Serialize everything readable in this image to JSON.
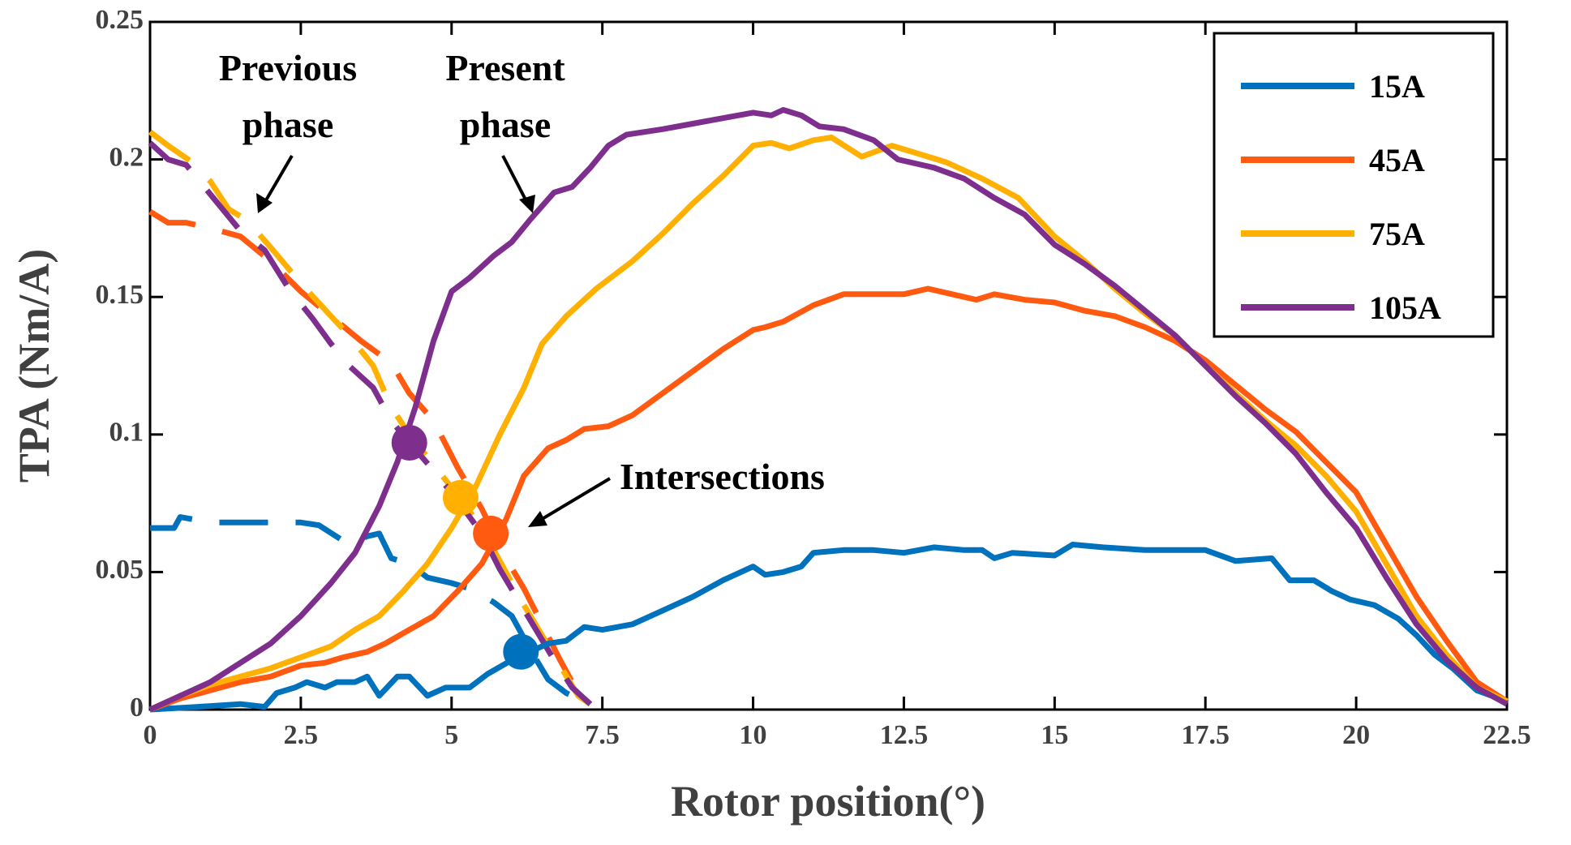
{
  "chart_data": {
    "type": "line",
    "title": "",
    "xlabel": "Rotor position(°)",
    "ylabel": "TPA (Nm/A)",
    "xlim": [
      0,
      22.5
    ],
    "ylim": [
      0,
      0.25
    ],
    "xticks": [
      0,
      2.5,
      5,
      7.5,
      10,
      12.5,
      15,
      17.5,
      20,
      22.5
    ],
    "xtick_labels": [
      "0",
      "2.5",
      "5",
      "7.5",
      "10",
      "12.5",
      "15",
      "17.5",
      "20",
      "22.5"
    ],
    "yticks": [
      0,
      0.05,
      0.1,
      0.15,
      0.2,
      0.25
    ],
    "ytick_labels": [
      "0",
      "0.05",
      "0.1",
      "0.15",
      "0.2",
      "0.25"
    ],
    "legend_position": "top-right",
    "series": [
      {
        "name": "15A",
        "color": "#0072BD",
        "present": [
          [
            0,
            0
          ],
          [
            0.8,
            0.001
          ],
          [
            1.5,
            0.002
          ],
          [
            1.9,
            0.001
          ],
          [
            2.1,
            0.006
          ],
          [
            2.4,
            0.008
          ],
          [
            2.6,
            0.01
          ],
          [
            2.9,
            0.008
          ],
          [
            3.1,
            0.01
          ],
          [
            3.4,
            0.01
          ],
          [
            3.6,
            0.012
          ],
          [
            3.8,
            0.005
          ],
          [
            4.1,
            0.012
          ],
          [
            4.3,
            0.012
          ],
          [
            4.6,
            0.005
          ],
          [
            4.9,
            0.008
          ],
          [
            5.3,
            0.008
          ],
          [
            5.6,
            0.013
          ],
          [
            6.0,
            0.018
          ],
          [
            6.3,
            0.021
          ],
          [
            6.6,
            0.024
          ],
          [
            6.9,
            0.025
          ],
          [
            7.2,
            0.03
          ],
          [
            7.5,
            0.029
          ],
          [
            8.0,
            0.031
          ],
          [
            8.5,
            0.036
          ],
          [
            9.0,
            0.041
          ],
          [
            9.5,
            0.047
          ],
          [
            10.0,
            0.052
          ],
          [
            10.2,
            0.049
          ],
          [
            10.5,
            0.05
          ],
          [
            10.8,
            0.052
          ],
          [
            11.0,
            0.057
          ],
          [
            11.5,
            0.058
          ],
          [
            12.0,
            0.058
          ],
          [
            12.5,
            0.057
          ],
          [
            13.0,
            0.059
          ],
          [
            13.5,
            0.058
          ],
          [
            13.8,
            0.058
          ],
          [
            14.0,
            0.055
          ],
          [
            14.3,
            0.057
          ],
          [
            15.0,
            0.056
          ],
          [
            15.3,
            0.06
          ],
          [
            15.8,
            0.059
          ],
          [
            16.5,
            0.058
          ],
          [
            17.5,
            0.058
          ],
          [
            18.0,
            0.054
          ],
          [
            18.6,
            0.055
          ],
          [
            18.9,
            0.047
          ],
          [
            19.3,
            0.047
          ],
          [
            19.6,
            0.043
          ],
          [
            19.9,
            0.04
          ],
          [
            20.3,
            0.038
          ],
          [
            20.7,
            0.033
          ],
          [
            21.0,
            0.027
          ],
          [
            21.3,
            0.02
          ],
          [
            21.6,
            0.015
          ],
          [
            22.0,
            0.007
          ],
          [
            22.5,
            0.003
          ]
        ],
        "previous": [
          [
            0,
            0.066
          ],
          [
            0.4,
            0.066
          ],
          [
            0.5,
            0.07
          ],
          [
            1.0,
            0.068
          ],
          [
            1.6,
            0.068
          ],
          [
            2.0,
            0.068
          ],
          [
            2.5,
            0.068
          ],
          [
            2.8,
            0.067
          ],
          [
            3.3,
            0.06
          ],
          [
            3.6,
            0.063
          ],
          [
            3.8,
            0.064
          ],
          [
            4.0,
            0.055
          ],
          [
            4.3,
            0.053
          ],
          [
            4.6,
            0.048
          ],
          [
            5.0,
            0.046
          ],
          [
            5.3,
            0.044
          ],
          [
            5.7,
            0.039
          ],
          [
            6.0,
            0.034
          ],
          [
            6.3,
            0.022
          ],
          [
            6.6,
            0.011
          ],
          [
            6.9,
            0.006
          ],
          [
            7.3,
            0.002
          ]
        ]
      },
      {
        "name": "45A",
        "color": "#FF5A10",
        "present": [
          [
            0,
            0
          ],
          [
            0.5,
            0.004
          ],
          [
            1.0,
            0.007
          ],
          [
            1.5,
            0.01
          ],
          [
            2.0,
            0.012
          ],
          [
            2.5,
            0.016
          ],
          [
            2.9,
            0.017
          ],
          [
            3.2,
            0.019
          ],
          [
            3.6,
            0.021
          ],
          [
            3.9,
            0.024
          ],
          [
            4.3,
            0.029
          ],
          [
            4.7,
            0.034
          ],
          [
            5.1,
            0.043
          ],
          [
            5.5,
            0.053
          ],
          [
            5.9,
            0.069
          ],
          [
            6.2,
            0.085
          ],
          [
            6.6,
            0.095
          ],
          [
            6.9,
            0.098
          ],
          [
            7.2,
            0.102
          ],
          [
            7.6,
            0.103
          ],
          [
            8.0,
            0.107
          ],
          [
            8.5,
            0.115
          ],
          [
            9.0,
            0.123
          ],
          [
            9.5,
            0.131
          ],
          [
            10.0,
            0.138
          ],
          [
            10.2,
            0.139
          ],
          [
            10.5,
            0.141
          ],
          [
            11.0,
            0.147
          ],
          [
            11.5,
            0.151
          ],
          [
            12.0,
            0.151
          ],
          [
            12.5,
            0.151
          ],
          [
            12.9,
            0.153
          ],
          [
            13.3,
            0.151
          ],
          [
            13.7,
            0.149
          ],
          [
            14.0,
            0.151
          ],
          [
            14.5,
            0.149
          ],
          [
            15.0,
            0.148
          ],
          [
            15.5,
            0.145
          ],
          [
            16.0,
            0.143
          ],
          [
            16.5,
            0.139
          ],
          [
            17.0,
            0.134
          ],
          [
            17.5,
            0.127
          ],
          [
            18.0,
            0.118
          ],
          [
            18.5,
            0.109
          ],
          [
            19.0,
            0.101
          ],
          [
            19.5,
            0.09
          ],
          [
            20.0,
            0.079
          ],
          [
            20.5,
            0.06
          ],
          [
            21.0,
            0.041
          ],
          [
            21.5,
            0.025
          ],
          [
            22.0,
            0.01
          ],
          [
            22.5,
            0.003
          ]
        ],
        "previous": [
          [
            0,
            0.181
          ],
          [
            0.3,
            0.177
          ],
          [
            0.6,
            0.177
          ],
          [
            1.0,
            0.175
          ],
          [
            1.5,
            0.172
          ],
          [
            2.0,
            0.163
          ],
          [
            2.5,
            0.152
          ],
          [
            3.0,
            0.143
          ],
          [
            3.5,
            0.134
          ],
          [
            4.0,
            0.126
          ],
          [
            4.3,
            0.115
          ],
          [
            4.7,
            0.105
          ],
          [
            5.1,
            0.088
          ],
          [
            5.5,
            0.073
          ],
          [
            5.9,
            0.055
          ],
          [
            6.2,
            0.044
          ],
          [
            6.5,
            0.031
          ],
          [
            6.8,
            0.018
          ],
          [
            7.1,
            0.006
          ],
          [
            7.3,
            0.002
          ]
        ]
      },
      {
        "name": "75A",
        "color": "#FFB000",
        "present": [
          [
            0,
            0
          ],
          [
            0.5,
            0.005
          ],
          [
            1.0,
            0.009
          ],
          [
            1.5,
            0.012
          ],
          [
            2.0,
            0.015
          ],
          [
            2.5,
            0.019
          ],
          [
            3.0,
            0.023
          ],
          [
            3.4,
            0.029
          ],
          [
            3.8,
            0.034
          ],
          [
            4.2,
            0.043
          ],
          [
            4.6,
            0.053
          ],
          [
            5.0,
            0.066
          ],
          [
            5.4,
            0.081
          ],
          [
            5.8,
            0.1
          ],
          [
            6.2,
            0.117
          ],
          [
            6.5,
            0.133
          ],
          [
            6.9,
            0.143
          ],
          [
            7.4,
            0.153
          ],
          [
            8.0,
            0.163
          ],
          [
            8.5,
            0.173
          ],
          [
            9.0,
            0.184
          ],
          [
            9.5,
            0.194
          ],
          [
            10.0,
            0.205
          ],
          [
            10.3,
            0.206
          ],
          [
            10.6,
            0.204
          ],
          [
            11.0,
            0.207
          ],
          [
            11.3,
            0.208
          ],
          [
            11.8,
            0.201
          ],
          [
            12.3,
            0.205
          ],
          [
            12.6,
            0.203
          ],
          [
            13.2,
            0.199
          ],
          [
            13.8,
            0.193
          ],
          [
            14.4,
            0.186
          ],
          [
            15.0,
            0.172
          ],
          [
            15.5,
            0.163
          ],
          [
            16.0,
            0.153
          ],
          [
            16.5,
            0.144
          ],
          [
            17.0,
            0.136
          ],
          [
            17.5,
            0.125
          ],
          [
            18.0,
            0.115
          ],
          [
            18.5,
            0.105
          ],
          [
            19.0,
            0.096
          ],
          [
            19.5,
            0.085
          ],
          [
            20.0,
            0.072
          ],
          [
            20.5,
            0.053
          ],
          [
            21.0,
            0.034
          ],
          [
            21.5,
            0.02
          ],
          [
            22.0,
            0.008
          ],
          [
            22.5,
            0.003
          ]
        ],
        "previous": [
          [
            0,
            0.21
          ],
          [
            0.3,
            0.205
          ],
          [
            0.7,
            0.199
          ],
          [
            1.0,
            0.192
          ],
          [
            1.3,
            0.182
          ],
          [
            1.6,
            0.178
          ],
          [
            2.0,
            0.168
          ],
          [
            2.5,
            0.155
          ],
          [
            3.0,
            0.143
          ],
          [
            3.3,
            0.136
          ],
          [
            3.7,
            0.125
          ],
          [
            4.0,
            0.11
          ],
          [
            4.3,
            0.1
          ],
          [
            4.7,
            0.089
          ],
          [
            5.1,
            0.078
          ],
          [
            5.5,
            0.066
          ],
          [
            5.9,
            0.05
          ],
          [
            6.2,
            0.038
          ],
          [
            6.5,
            0.027
          ],
          [
            6.8,
            0.016
          ],
          [
            7.1,
            0.005
          ],
          [
            7.3,
            0.002
          ]
        ]
      },
      {
        "name": "105A",
        "color": "#7E2F8E",
        "present": [
          [
            0,
            0
          ],
          [
            0.5,
            0.005
          ],
          [
            1.0,
            0.01
          ],
          [
            1.5,
            0.017
          ],
          [
            2.0,
            0.024
          ],
          [
            2.5,
            0.034
          ],
          [
            3.0,
            0.046
          ],
          [
            3.4,
            0.057
          ],
          [
            3.8,
            0.074
          ],
          [
            4.1,
            0.09
          ],
          [
            4.4,
            0.11
          ],
          [
            4.7,
            0.134
          ],
          [
            5.0,
            0.152
          ],
          [
            5.3,
            0.157
          ],
          [
            5.7,
            0.165
          ],
          [
            6.0,
            0.17
          ],
          [
            6.3,
            0.178
          ],
          [
            6.7,
            0.188
          ],
          [
            7.0,
            0.19
          ],
          [
            7.3,
            0.197
          ],
          [
            7.6,
            0.205
          ],
          [
            7.9,
            0.209
          ],
          [
            8.5,
            0.211
          ],
          [
            9.0,
            0.213
          ],
          [
            9.5,
            0.215
          ],
          [
            10.0,
            0.217
          ],
          [
            10.3,
            0.216
          ],
          [
            10.5,
            0.218
          ],
          [
            10.8,
            0.216
          ],
          [
            11.1,
            0.212
          ],
          [
            11.5,
            0.211
          ],
          [
            12.0,
            0.207
          ],
          [
            12.4,
            0.2
          ],
          [
            13.0,
            0.197
          ],
          [
            13.5,
            0.193
          ],
          [
            14.0,
            0.186
          ],
          [
            14.5,
            0.18
          ],
          [
            15.0,
            0.169
          ],
          [
            15.5,
            0.162
          ],
          [
            16.0,
            0.154
          ],
          [
            16.5,
            0.145
          ],
          [
            17.0,
            0.136
          ],
          [
            17.5,
            0.125
          ],
          [
            18.0,
            0.114
          ],
          [
            18.5,
            0.104
          ],
          [
            19.0,
            0.093
          ],
          [
            19.5,
            0.079
          ],
          [
            20.0,
            0.066
          ],
          [
            20.5,
            0.048
          ],
          [
            21.0,
            0.031
          ],
          [
            21.5,
            0.018
          ],
          [
            22.0,
            0.008
          ],
          [
            22.5,
            0.002
          ]
        ],
        "previous": [
          [
            0,
            0.206
          ],
          [
            0.3,
            0.2
          ],
          [
            0.6,
            0.198
          ],
          [
            0.9,
            0.19
          ],
          [
            1.2,
            0.182
          ],
          [
            1.5,
            0.174
          ],
          [
            1.9,
            0.167
          ],
          [
            2.3,
            0.153
          ],
          [
            2.7,
            0.142
          ],
          [
            3.0,
            0.133
          ],
          [
            3.3,
            0.125
          ],
          [
            3.7,
            0.117
          ],
          [
            4.0,
            0.105
          ],
          [
            4.3,
            0.097
          ],
          [
            4.7,
            0.087
          ],
          [
            5.1,
            0.076
          ],
          [
            5.5,
            0.064
          ],
          [
            5.8,
            0.051
          ],
          [
            6.1,
            0.04
          ],
          [
            6.4,
            0.029
          ],
          [
            6.7,
            0.018
          ],
          [
            7.0,
            0.008
          ],
          [
            7.3,
            0.002
          ]
        ]
      }
    ],
    "intersections": [
      {
        "name": "105A",
        "x": 4.3,
        "y": 0.097,
        "color": "#7E2F8E"
      },
      {
        "name": "75A",
        "x": 5.15,
        "y": 0.077,
        "color": "#FFB000"
      },
      {
        "name": "45A",
        "x": 5.65,
        "y": 0.064,
        "color": "#FF5A10"
      },
      {
        "name": "15A",
        "x": 6.15,
        "y": 0.021,
        "color": "#0072BD"
      }
    ],
    "annotations": {
      "previous_phase": [
        "Previous",
        "phase"
      ],
      "present_phase": [
        "Present",
        "phase"
      ],
      "intersections": "Intersections"
    }
  }
}
